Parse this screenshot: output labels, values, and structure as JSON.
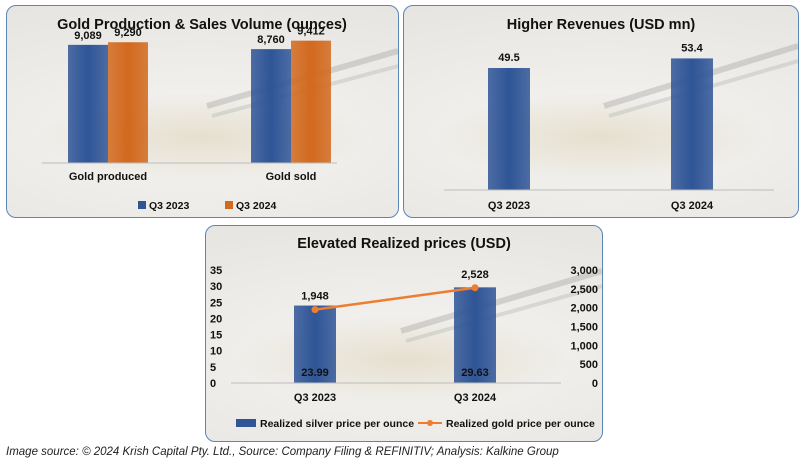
{
  "chart_data": [
    {
      "type": "bar",
      "title": "Gold Production & Sales Volume (ounces)",
      "categories": [
        "Gold produced",
        "Gold sold"
      ],
      "series": [
        {
          "name": "Q3 2023",
          "values": [
            9089,
            8760
          ],
          "labels": [
            "9,089",
            "8,760"
          ],
          "color": "#2f5597"
        },
        {
          "name": "Q3 2024",
          "values": [
            9290,
            9412
          ],
          "labels": [
            "9,290",
            "9,412"
          ],
          "color": "#d2691e"
        }
      ],
      "ylim": [
        0,
        10000
      ],
      "legend": "bottom"
    },
    {
      "type": "bar",
      "title": "Higher Revenues (USD mn)",
      "categories": [
        "Q3 2023",
        "Q3 2024"
      ],
      "values": [
        49.5,
        53.4
      ],
      "labels": [
        "49.5",
        "53.4"
      ],
      "color": "#2f5597",
      "ylim": [
        0,
        56
      ]
    },
    {
      "type": "bar",
      "title": "Elevated Realized prices (USD)",
      "categories": [
        "Q3 2023",
        "Q3 2024"
      ],
      "series": [
        {
          "name": "Realized silver price per ounce",
          "type": "bar",
          "axis": "left",
          "values": [
            23.99,
            29.63
          ],
          "labels": [
            "23.99",
            "29.63"
          ],
          "color": "#2f5597"
        },
        {
          "name": "Realized gold price per ounce",
          "type": "line",
          "axis": "right",
          "values": [
            1948,
            2528
          ],
          "labels": [
            "1,948",
            "2,528"
          ],
          "color": "#ed7d31"
        }
      ],
      "left_axis": {
        "ylim": [
          0,
          35
        ],
        "ticks": [
          "35",
          "30",
          "25",
          "20",
          "15",
          "10",
          "5",
          "0"
        ]
      },
      "right_axis": {
        "ylim": [
          0,
          3000
        ],
        "ticks": [
          "3,000",
          "2,500",
          "2,000",
          "1,500",
          "1,000",
          "500",
          "0"
        ]
      },
      "legend": "bottom"
    }
  ],
  "footer": "Image source: © 2024 Krish Capital Pty. Ltd., Source: Company Filing & REFINITIV; Analysis: Kalkine Group"
}
